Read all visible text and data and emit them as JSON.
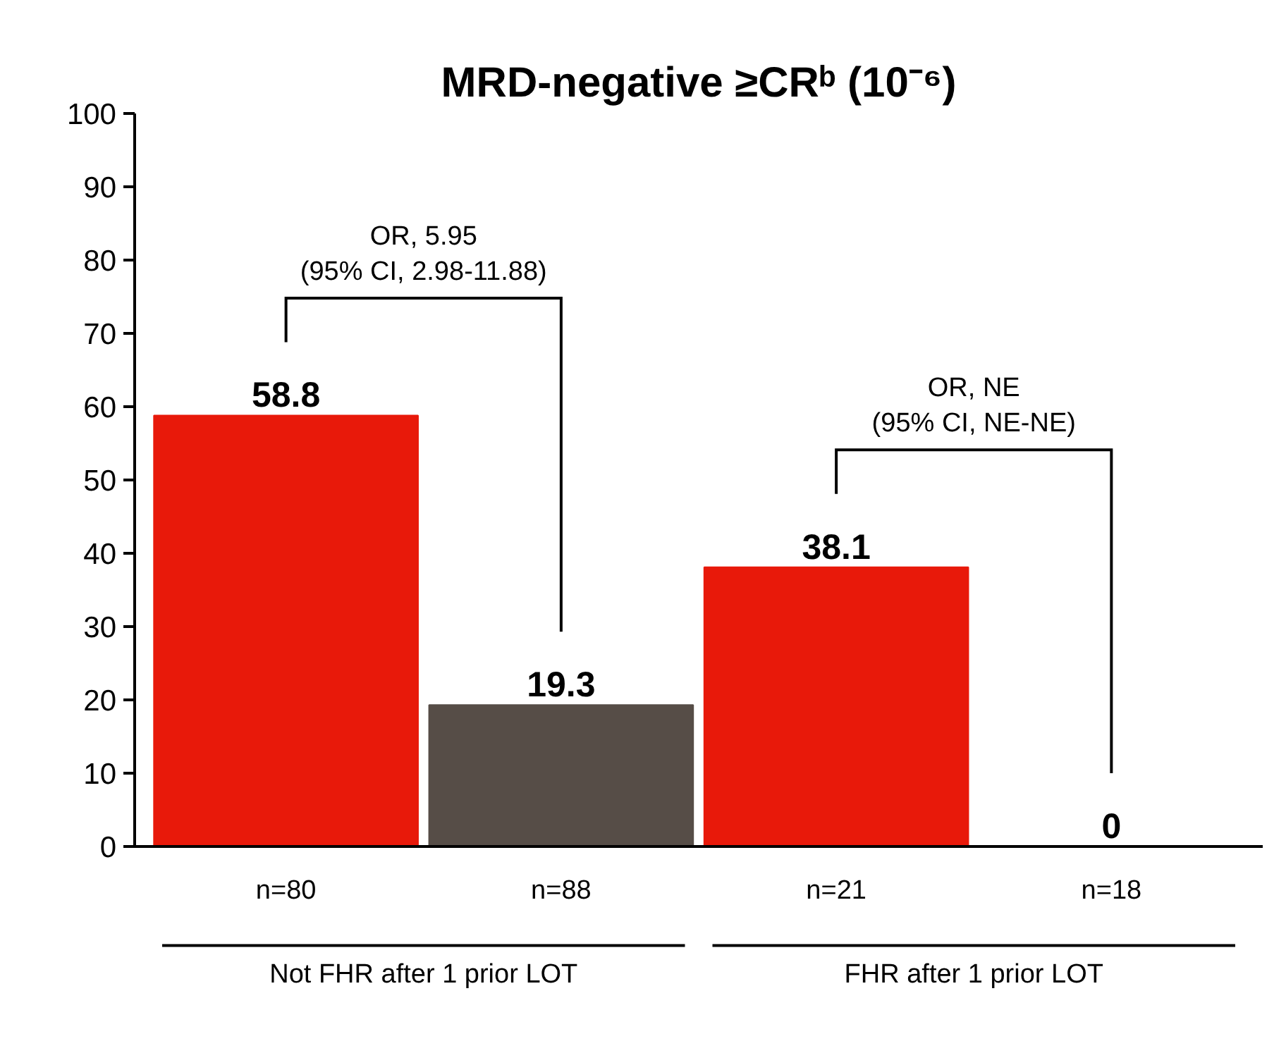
{
  "chart_data": {
    "type": "bar",
    "title": "MRD-negative ≥CRᵇ (10⁻⁶)",
    "categories": [
      "n=80",
      "n=88",
      "n=21",
      "n=18"
    ],
    "values": [
      58.8,
      19.3,
      38.1,
      0
    ],
    "colors": [
      "#e8190a",
      "#564d47",
      "#e8190a",
      "#564d47"
    ],
    "ylim": [
      0,
      100
    ],
    "yticks": [
      0,
      10,
      20,
      30,
      40,
      50,
      60,
      70,
      80,
      90,
      100
    ],
    "grid": false,
    "data_labels": true,
    "annotations": [
      "OR, 5.95\n(95% CI, 2.98-11.88)",
      "OR, NE\n(95% CI, NE-NE)",
      "Not FHR after 1 prior LOT",
      "FHR after 1 prior LOT"
    ]
  }
}
